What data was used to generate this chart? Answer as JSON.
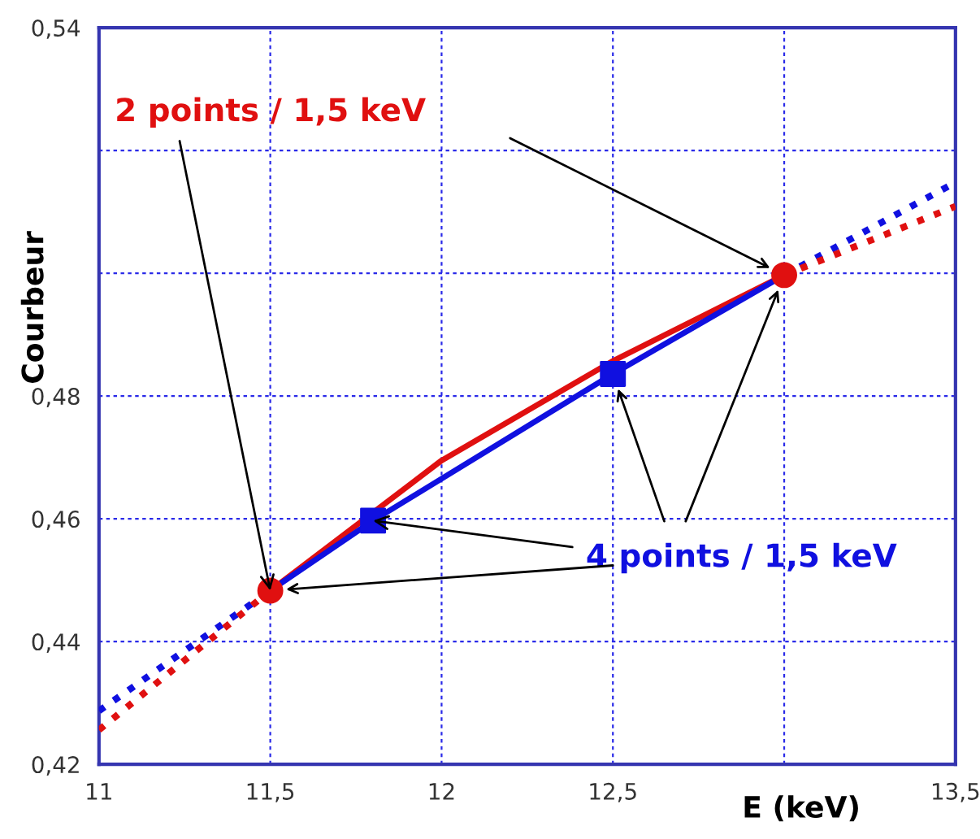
{
  "chart_data": {
    "type": "line",
    "ylabel": "Courbeur",
    "xlabel": "E (keV)",
    "xlim": [
      11,
      13.5
    ],
    "ylim": [
      0.42,
      0.54
    ],
    "xticks": [
      11,
      {
        "value": 11.5,
        "label": "11,5"
      },
      12,
      {
        "value": 12.5,
        "label": "12,5"
      },
      {
        "value": 13,
        "label": null
      },
      {
        "value": 13.5,
        "label": "13,5"
      }
    ],
    "yticks": [
      {
        "value": 0.42,
        "label": "0,42"
      },
      {
        "value": 0.44,
        "label": "0,44"
      },
      {
        "value": 0.46,
        "label": "0,46"
      },
      {
        "value": 0.48,
        "label": "0,48"
      },
      {
        "value": 0.5,
        "label": null
      },
      {
        "value": 0.52,
        "label": null
      },
      {
        "value": 0.54,
        "label": "0,54"
      }
    ],
    "grid": true,
    "series": [
      {
        "color": "#1010e0",
        "line_style": "dotted",
        "x": [
          11,
          11.5
        ],
        "values": [
          0.4287,
          0.4483
        ]
      },
      {
        "color": "#1010e0",
        "line_style": "dotted",
        "x": [
          13,
          13.5
        ],
        "values": [
          0.4997,
          0.5148
        ]
      },
      {
        "color": "#e01010",
        "line_style": "dotted",
        "x": [
          11,
          11.5
        ],
        "values": [
          0.4256,
          0.4483
        ]
      },
      {
        "color": "#e01010",
        "line_style": "dotted",
        "x": [
          13,
          13.5
        ],
        "values": [
          0.4997,
          0.5109
        ]
      },
      {
        "color": "#e01010",
        "line_style": "solid",
        "x": [
          11.5,
          12,
          12.5,
          13
        ],
        "values": [
          0.4483,
          0.4695,
          0.4857,
          0.4997
        ]
      },
      {
        "color": "#1010e0",
        "line_style": "solid",
        "x": [
          11.5,
          11.8,
          12.5,
          13
        ],
        "values": [
          0.4483,
          0.4597,
          0.4836,
          0.4997
        ]
      },
      {
        "type": "scatter",
        "color": "#e01010",
        "marker": "circle",
        "x": [
          11.5,
          13
        ],
        "values": [
          0.4483,
          0.4997
        ]
      },
      {
        "type": "scatter",
        "color": "#1010e0",
        "marker": "square",
        "x": [
          11.8,
          12.5
        ],
        "values": [
          0.4597,
          0.4836
        ]
      }
    ],
    "annotations": [
      {
        "text": "2 points / 1,5 keV",
        "x": 11.5,
        "y": 0.4483
      },
      {
        "text": "4 points / 1,5 keV",
        "x": 11.8,
        "y": 0.4597
      }
    ]
  }
}
